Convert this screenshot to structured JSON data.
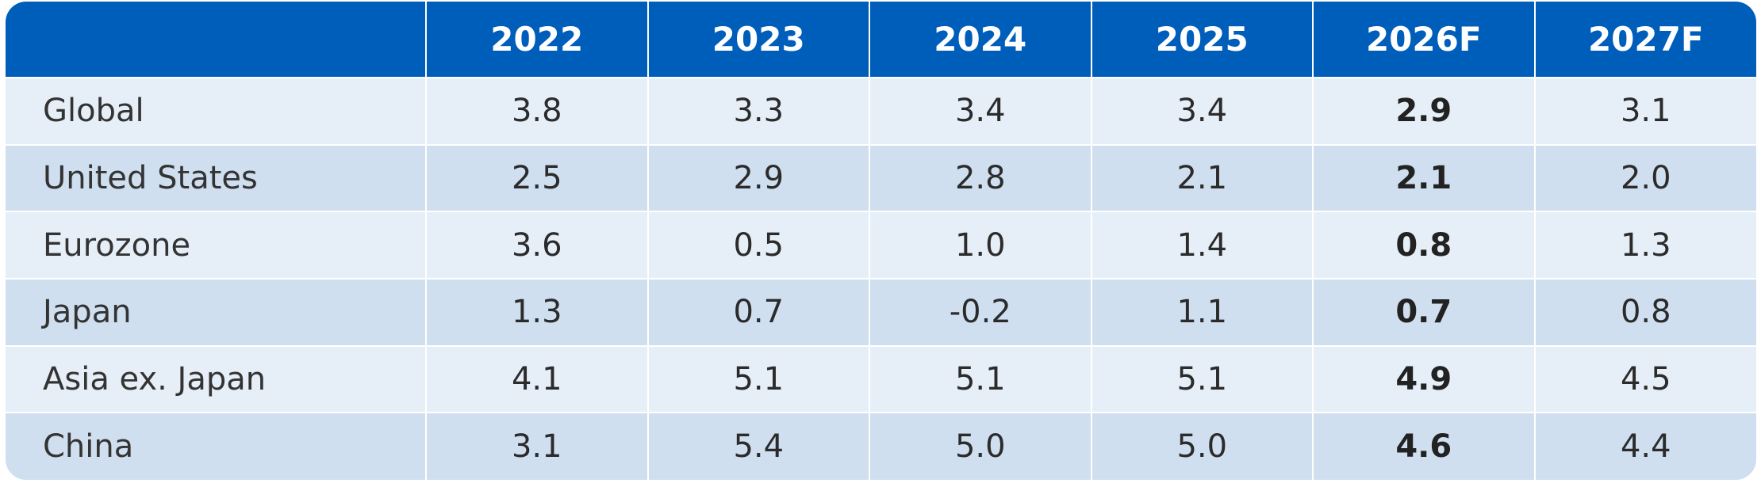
{
  "chart_data": {
    "type": "table",
    "columns": [
      "",
      "2022",
      "2023",
      "2024",
      "2025",
      "2026F",
      "2027F"
    ],
    "rows": [
      {
        "label": "Global",
        "values": [
          "3.8",
          "3.3",
          "3.4",
          "3.4",
          "2.9",
          "3.1"
        ]
      },
      {
        "label": "United States",
        "values": [
          "2.5",
          "2.9",
          "2.8",
          "2.1",
          "2.1",
          "2.0"
        ]
      },
      {
        "label": "Eurozone",
        "values": [
          "3.6",
          "0.5",
          "1.0",
          "1.4",
          "0.8",
          "1.3"
        ]
      },
      {
        "label": "Japan",
        "values": [
          "1.3",
          "0.7",
          "-0.2",
          "1.1",
          "0.7",
          "0.8"
        ]
      },
      {
        "label": "Asia ex. Japan",
        "values": [
          "4.1",
          "5.1",
          "5.1",
          "5.1",
          "4.9",
          "4.5"
        ]
      },
      {
        "label": "China",
        "values": [
          "3.1",
          "5.4",
          "5.0",
          "5.0",
          "4.6",
          "4.4"
        ]
      }
    ],
    "emphasized_column": "2026F",
    "colors": {
      "header_bg": "#005ebb",
      "header_text": "#ffffff",
      "row_light": "#e6eff8",
      "row_dark": "#cfdfef",
      "text": "#2b2b2b"
    }
  }
}
